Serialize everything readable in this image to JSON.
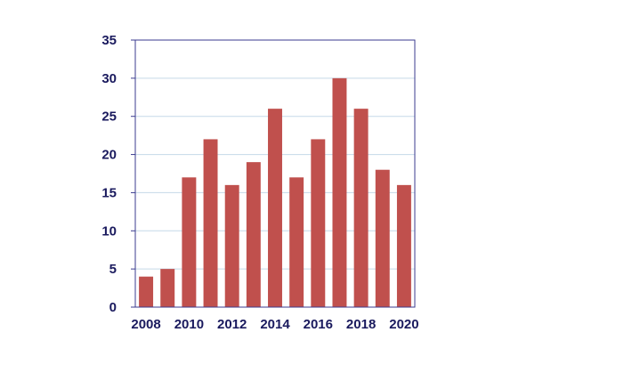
{
  "chart_data": {
    "type": "bar",
    "title": "",
    "xlabel": "",
    "ylabel": "",
    "categories": [
      "2008",
      "2009",
      "2010",
      "2011",
      "2012",
      "2013",
      "2014",
      "2015",
      "2016",
      "2017",
      "2018",
      "2019",
      "2020"
    ],
    "values": [
      4,
      5,
      17,
      22,
      16,
      19,
      26,
      17,
      22,
      30,
      26,
      18,
      16
    ],
    "x_tick_labels": [
      "2008",
      "2010",
      "2012",
      "2014",
      "2016",
      "2018",
      "2020"
    ],
    "y_ticks": [
      "0",
      "5",
      "10",
      "15",
      "20",
      "25",
      "30",
      "35"
    ],
    "ylim": [
      0,
      35
    ],
    "grid": true,
    "legend": "none",
    "colors": {
      "bar": "#c0504d",
      "axis": "#3b3b8f",
      "grid": "#c5d9e8",
      "label": "#1a1a5e"
    }
  }
}
